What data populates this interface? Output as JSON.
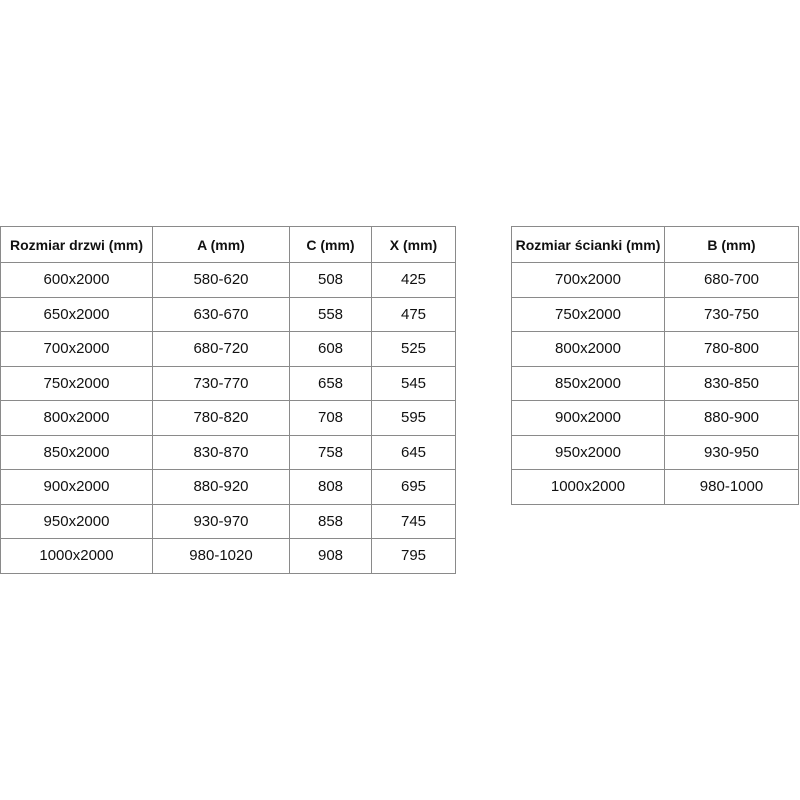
{
  "door_table": {
    "headers": [
      "Rozmiar drzwi (mm)",
      "A (mm)",
      "C (mm)",
      "X (mm)"
    ],
    "rows": [
      [
        "600x2000",
        "580-620",
        "508",
        "425"
      ],
      [
        "650x2000",
        "630-670",
        "558",
        "475"
      ],
      [
        "700x2000",
        "680-720",
        "608",
        "525"
      ],
      [
        "750x2000",
        "730-770",
        "658",
        "545"
      ],
      [
        "800x2000",
        "780-820",
        "708",
        "595"
      ],
      [
        "850x2000",
        "830-870",
        "758",
        "645"
      ],
      [
        "900x2000",
        "880-920",
        "808",
        "695"
      ],
      [
        "950x2000",
        "930-970",
        "858",
        "745"
      ],
      [
        "1000x2000",
        "980-1020",
        "908",
        "795"
      ]
    ]
  },
  "wall_table": {
    "headers": [
      "Rozmiar ścianki (mm)",
      "B (mm)"
    ],
    "rows": [
      [
        "700x2000",
        "680-700"
      ],
      [
        "750x2000",
        "730-750"
      ],
      [
        "800x2000",
        "780-800"
      ],
      [
        "850x2000",
        "830-850"
      ],
      [
        "900x2000",
        "880-900"
      ],
      [
        "950x2000",
        "930-950"
      ],
      [
        "1000x2000",
        "980-1000"
      ]
    ]
  }
}
